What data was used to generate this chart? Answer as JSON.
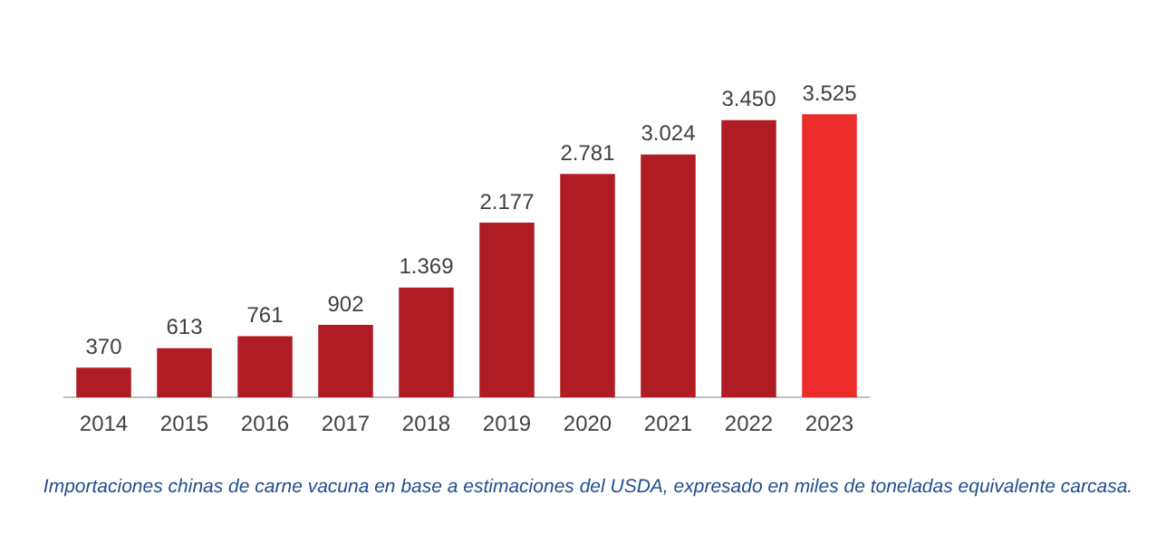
{
  "chart_data": {
    "type": "bar",
    "categories": [
      "2014",
      "2015",
      "2016",
      "2017",
      "2018",
      "2019",
      "2020",
      "2021",
      "2022",
      "2023"
    ],
    "values": [
      370,
      613,
      761,
      902,
      1369,
      2177,
      2781,
      3024,
      3450,
      3525
    ],
    "value_labels": [
      "370",
      "613",
      "761",
      "902",
      "1.369",
      "2.177",
      "2.781",
      "3.024",
      "3.450",
      "3.525"
    ],
    "colors": [
      "#b01c24",
      "#b01c24",
      "#b01c24",
      "#b01c24",
      "#b01c24",
      "#b01c24",
      "#b01c24",
      "#b01c24",
      "#b01c24",
      "#ec2b2b"
    ],
    "annotations": [
      "Importaciones chinas de carne vacuna en base a estimaciones del USDA, expresado en miles de toneladas equivalente carcasa."
    ],
    "grid": false,
    "legend": false
  }
}
